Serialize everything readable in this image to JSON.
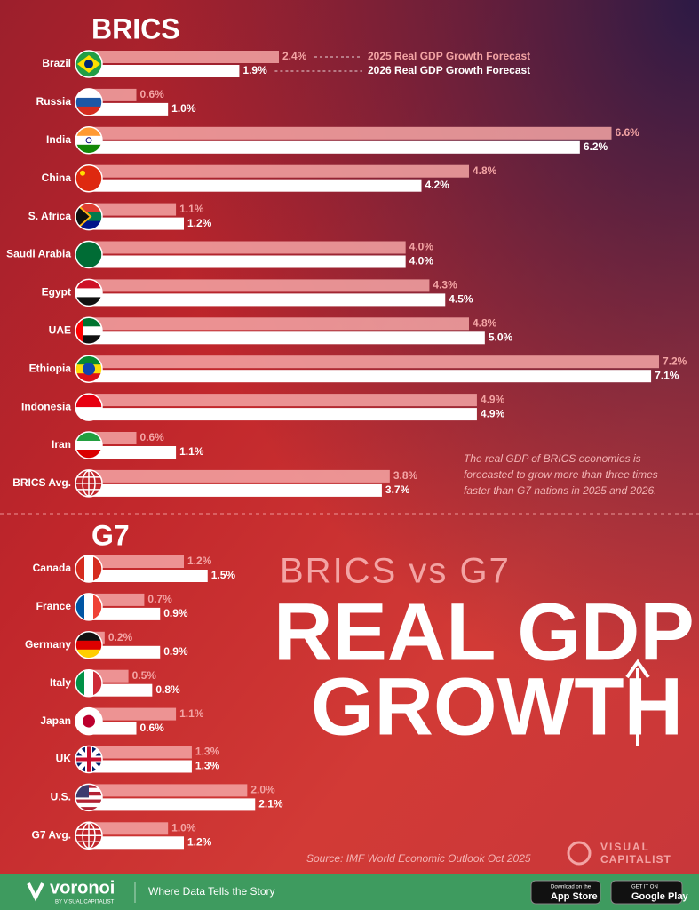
{
  "chart_data": [
    {
      "type": "bar",
      "orientation": "horizontal",
      "title": "BRICS",
      "categories": [
        "Brazil",
        "Russia",
        "India",
        "China",
        "S. Africa",
        "Saudi Arabia",
        "Egypt",
        "UAE",
        "Ethiopia",
        "Indonesia",
        "Iran",
        "BRICS Avg."
      ],
      "series": [
        {
          "name": "2025 Real GDP Growth Forecast",
          "color": "#f3a4a4",
          "values": [
            2.4,
            0.6,
            6.6,
            4.8,
            1.1,
            4.0,
            4.3,
            4.8,
            7.2,
            4.9,
            0.6,
            3.8
          ],
          "value_labels": [
            "2.4%",
            "0.6%",
            "6.6%",
            "4.8%",
            "1.1%",
            "4.0%",
            "4.3%",
            "4.8%",
            "7.2%",
            "4.9%",
            "0.6%",
            "3.8%"
          ]
        },
        {
          "name": "2026 Real GDP Growth Forecast",
          "color": "#ffffff",
          "values": [
            1.9,
            1.0,
            6.2,
            4.2,
            1.2,
            4.0,
            4.5,
            5.0,
            7.1,
            4.9,
            1.1,
            3.7
          ],
          "value_labels": [
            "1.9%",
            "1.0%",
            "6.2%",
            "4.2%",
            "1.2%",
            "4.0%",
            "4.5%",
            "5.0%",
            "7.1%",
            "4.9%",
            "1.1%",
            "3.7%"
          ]
        }
      ],
      "xlim": [
        0,
        7.2
      ]
    },
    {
      "type": "bar",
      "orientation": "horizontal",
      "title": "G7",
      "categories": [
        "Canada",
        "France",
        "Germany",
        "Italy",
        "Japan",
        "UK",
        "U.S.",
        "G7 Avg."
      ],
      "series": [
        {
          "color": "#f3a4a4",
          "values": [
            1.2,
            0.7,
            0.2,
            0.5,
            1.1,
            1.3,
            2.0,
            1.0
          ],
          "value_labels": [
            "1.2%",
            "0.7%",
            "0.2%",
            "0.5%",
            "1.1%",
            "1.3%",
            "2.0%",
            "1.0%"
          ]
        },
        {
          "color": "#ffffff",
          "values": [
            1.5,
            0.9,
            0.9,
            0.8,
            0.6,
            1.3,
            2.1,
            1.2
          ],
          "value_labels": [
            "1.5%",
            "0.9%",
            "0.9%",
            "0.8%",
            "0.6%",
            "1.3%",
            "2.1%",
            "1.2%"
          ]
        }
      ],
      "xlim": [
        0,
        7.2
      ]
    }
  ],
  "headline": {
    "top": "BRICS vs G7",
    "line1": "REAL GDP",
    "line2": "GROWTH"
  },
  "note": [
    "The real GDP of BRICS economies is",
    "forecasted to grow more than three times",
    "faster than G7 nations in 2025 and 2026."
  ],
  "source": "Source: IMF World Economic Outlook Oct 2025",
  "brand": [
    "VISUAL",
    "CAPITALIST"
  ],
  "footer": {
    "logo": "voronoi",
    "by": "BY VISUAL CAPITALIST",
    "tagline": "Where Data Tells the Story",
    "appstore": [
      "Download on the",
      "App Store"
    ],
    "googleplay": [
      "GET IT ON",
      "Google Play"
    ]
  }
}
